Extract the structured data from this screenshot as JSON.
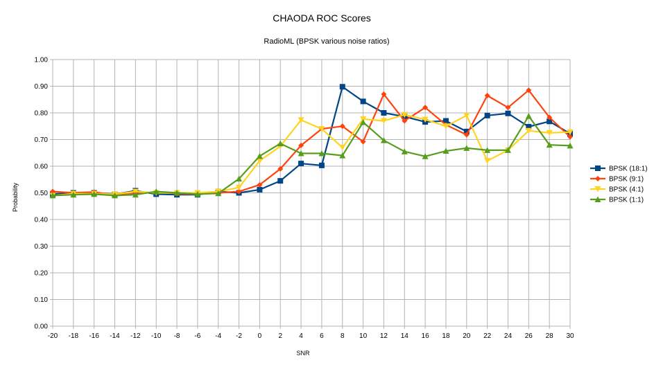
{
  "chart_data": {
    "type": "line",
    "title": "CHAODA ROC Scores",
    "subtitle": "RadioML (BPSK various noise ratios)",
    "xlabel": "SNR",
    "ylabel": "Probability",
    "ylim": [
      0,
      1
    ],
    "yticks": [
      "0.00",
      "0.10",
      "0.20",
      "0.30",
      "0.40",
      "0.50",
      "0.60",
      "0.70",
      "0.80",
      "0.90",
      "1.00"
    ],
    "grid": true,
    "legend_position": "right",
    "x": [
      -20,
      -18,
      -16,
      -14,
      -12,
      -10,
      -8,
      -6,
      -4,
      -2,
      0,
      2,
      4,
      6,
      8,
      10,
      12,
      14,
      16,
      18,
      20,
      22,
      24,
      26,
      28,
      30
    ],
    "series": [
      {
        "name": "BPSK (18:1)",
        "color": "#004586",
        "marker": "square",
        "values": [
          0.495,
          0.5,
          0.5,
          0.495,
          0.508,
          0.495,
          0.493,
          0.493,
          0.505,
          0.5,
          0.512,
          0.545,
          0.61,
          0.603,
          0.898,
          0.843,
          0.8,
          0.786,
          0.766,
          0.77,
          0.73,
          0.79,
          0.798,
          0.748,
          0.768,
          0.722
        ]
      },
      {
        "name": "BPSK (9:1)",
        "color": "#ff420e",
        "marker": "diamond",
        "values": [
          0.505,
          0.5,
          0.503,
          0.492,
          0.497,
          0.503,
          0.497,
          0.495,
          0.5,
          0.505,
          0.53,
          0.59,
          0.678,
          0.74,
          0.75,
          0.692,
          0.87,
          0.77,
          0.82,
          0.755,
          0.718,
          0.865,
          0.82,
          0.885,
          0.783,
          0.71
        ]
      },
      {
        "name": "BPSK (4:1)",
        "color": "#ffd320",
        "marker": "triangle-down",
        "values": [
          0.49,
          0.497,
          0.497,
          0.495,
          0.505,
          0.5,
          0.5,
          0.5,
          0.505,
          0.52,
          0.62,
          0.675,
          0.773,
          0.74,
          0.67,
          0.777,
          0.77,
          0.793,
          0.775,
          0.75,
          0.79,
          0.62,
          0.66,
          0.733,
          0.725,
          0.728
        ]
      },
      {
        "name": "BPSK (1:1)",
        "color": "#579d1c",
        "marker": "triangle-up",
        "values": [
          0.49,
          0.493,
          0.495,
          0.49,
          0.493,
          0.505,
          0.5,
          0.495,
          0.498,
          0.553,
          0.638,
          0.685,
          0.648,
          0.648,
          0.64,
          0.765,
          0.697,
          0.655,
          0.637,
          0.657,
          0.668,
          0.66,
          0.66,
          0.788,
          0.68,
          0.677
        ]
      }
    ]
  }
}
